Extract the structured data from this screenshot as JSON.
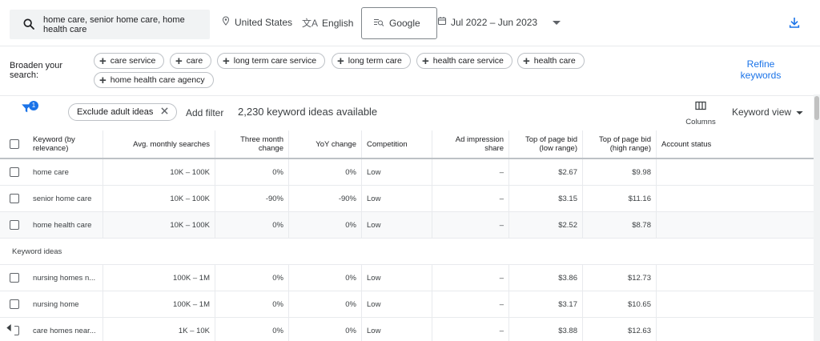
{
  "search": {
    "query": "home care, senior home care, home health care"
  },
  "top": {
    "location": "United States",
    "language": "English",
    "network": "Google",
    "date_range": "Jul 2022 – Jun 2023"
  },
  "broaden": {
    "label": "Broaden your search:",
    "chips": [
      "care service",
      "care",
      "long term care service",
      "long term care",
      "health care service",
      "health care",
      "home health care agency"
    ],
    "refine_label": "Refine keywords"
  },
  "filterbar": {
    "filter_badge": "1",
    "exclude_chip": "Exclude adult ideas",
    "add_filter": "Add filter",
    "ideas_count": "2,230 keyword ideas available",
    "columns_label": "Columns",
    "keyword_view": "Keyword view"
  },
  "table": {
    "headers": [
      "Keyword (by relevance)",
      "Avg. monthly searches",
      "Three month change",
      "YoY change",
      "Competition",
      "Ad impression share",
      "Top of page bid (low range)",
      "Top of page bid (high range)",
      "Account status"
    ],
    "provided_rows": [
      {
        "keyword": "home care",
        "searches": "10K – 100K",
        "three_month": "0%",
        "yoy": "0%",
        "competition": "Low",
        "impression": "–",
        "bid_low": "$2.67",
        "bid_high": "$9.98"
      },
      {
        "keyword": "senior home care",
        "searches": "10K – 100K",
        "three_month": "-90%",
        "yoy": "-90%",
        "competition": "Low",
        "impression": "–",
        "bid_low": "$3.15",
        "bid_high": "$11.16"
      },
      {
        "keyword": "home health care",
        "searches": "10K – 100K",
        "three_month": "0%",
        "yoy": "0%",
        "competition": "Low",
        "impression": "–",
        "bid_low": "$2.52",
        "bid_high": "$8.78"
      }
    ],
    "section_label": "Keyword ideas",
    "idea_rows": [
      {
        "keyword": "nursing homes n...",
        "searches": "100K – 1M",
        "three_month": "0%",
        "yoy": "0%",
        "competition": "Low",
        "impression": "–",
        "bid_low": "$3.86",
        "bid_high": "$12.73"
      },
      {
        "keyword": "nursing home",
        "searches": "100K – 1M",
        "three_month": "0%",
        "yoy": "0%",
        "competition": "Low",
        "impression": "–",
        "bid_low": "$3.17",
        "bid_high": "$10.65"
      },
      {
        "keyword": "care homes near...",
        "searches": "1K – 10K",
        "three_month": "0%",
        "yoy": "0%",
        "competition": "Low",
        "impression": "–",
        "bid_low": "$3.88",
        "bid_high": "$12.63"
      }
    ]
  },
  "icons": {
    "search": "search-icon",
    "location": "location-pin-icon",
    "language": "translate-icon",
    "network": "network-icon",
    "calendar": "calendar-icon",
    "download": "download-icon",
    "filter": "filter-icon",
    "columns": "columns-icon"
  },
  "colors": {
    "accent": "#1a73e8",
    "search_bg": "#f1f3f4"
  }
}
